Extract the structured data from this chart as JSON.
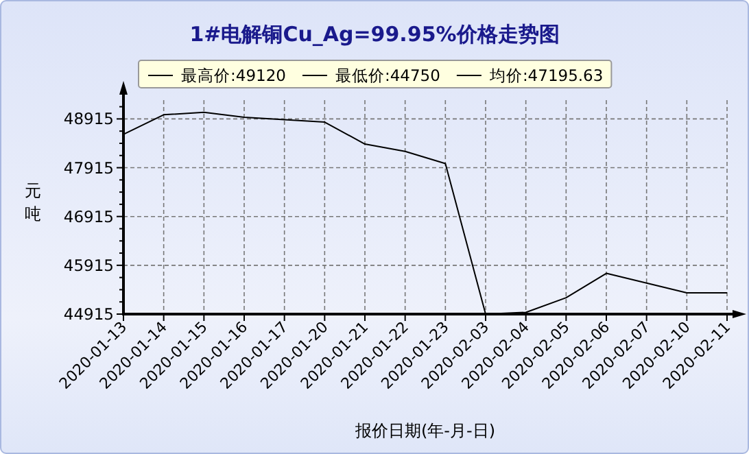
{
  "chart_data": {
    "type": "line",
    "title": "1#电解铜Cu_Ag=99.95%价格走势图",
    "xlabel": "报价日期(年-月-日)",
    "ylabel": "元吨",
    "annotations": [
      "最高价:49120",
      "最低价:44750",
      "均价:47195.63"
    ],
    "categories": [
      "2020-01-13",
      "2020-01-14",
      "2020-01-15",
      "2020-01-16",
      "2020-01-17",
      "2020-01-20",
      "2020-01-21",
      "2020-01-22",
      "2020-01-23",
      "2020-02-03",
      "2020-02-04",
      "2020-02-05",
      "2020-02-06",
      "2020-02-07",
      "2020-02-10",
      "2020-02-11"
    ],
    "series": [
      {
        "color": "#000000",
        "values": [
          48600,
          49000,
          49050,
          48950,
          48900,
          48850,
          48400,
          48250,
          48000,
          44915,
          44950,
          45250,
          45750,
          45550,
          45350,
          45350
        ]
      }
    ],
    "ylim": [
      44915,
      49300
    ],
    "yticks": [
      44915,
      45915,
      46915,
      47915,
      48915
    ],
    "grid": true,
    "marker": "none",
    "line_style": "solid"
  }
}
